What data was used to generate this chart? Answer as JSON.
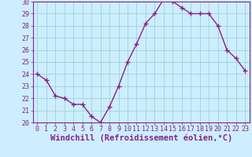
{
  "x": [
    0,
    1,
    2,
    3,
    4,
    5,
    6,
    7,
    8,
    9,
    10,
    11,
    12,
    13,
    14,
    15,
    16,
    17,
    18,
    19,
    20,
    21,
    22,
    23
  ],
  "y": [
    24.0,
    23.5,
    22.2,
    22.0,
    21.5,
    21.5,
    20.5,
    20.0,
    21.3,
    23.0,
    25.0,
    26.5,
    28.2,
    29.0,
    30.2,
    30.0,
    29.5,
    29.0,
    29.0,
    29.0,
    28.0,
    26.0,
    25.3,
    24.3
  ],
  "line_color": "#882288",
  "marker": "+",
  "marker_size": 4,
  "bg_color": "#cceeff",
  "grid_color": "#99cccc",
  "xlabel": "Windchill (Refroidissement éolien,°C)",
  "ylim": [
    20,
    30
  ],
  "xlim": [
    -0.5,
    23.5
  ],
  "yticks": [
    20,
    21,
    22,
    23,
    24,
    25,
    26,
    27,
    28,
    29,
    30
  ],
  "xticks": [
    0,
    1,
    2,
    3,
    4,
    5,
    6,
    7,
    8,
    9,
    10,
    11,
    12,
    13,
    14,
    15,
    16,
    17,
    18,
    19,
    20,
    21,
    22,
    23
  ],
  "xlabel_fontsize": 7.5,
  "tick_fontsize": 6,
  "axis_color": "#882288",
  "spine_color": "#882288",
  "linewidth": 1.0,
  "marker_linewidth": 1.0
}
